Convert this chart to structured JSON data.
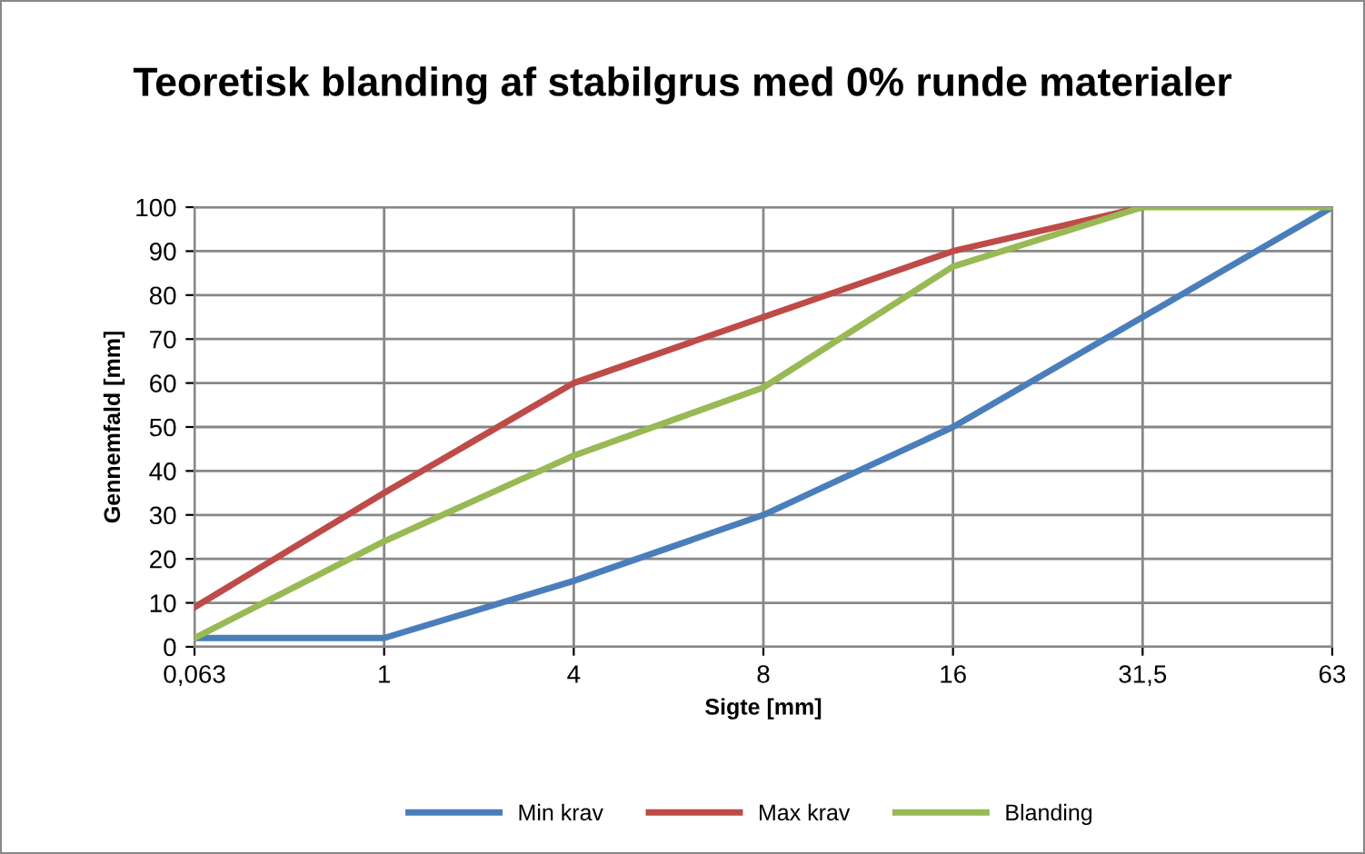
{
  "chart_data": {
    "type": "line",
    "title": "Teoretisk blanding af stabilgrus med 0% runde materialer",
    "xlabel": "Sigte [mm]",
    "ylabel": "Gennemfald [mm]",
    "categories": [
      "0,063",
      "1",
      "4",
      "8",
      "16",
      "31,5",
      "63"
    ],
    "series": [
      {
        "name": "Min krav",
        "color": "#4a7ebb",
        "values": [
          2,
          2,
          15,
          30,
          50,
          75,
          100
        ]
      },
      {
        "name": "Max krav",
        "color": "#be4b48",
        "values": [
          9,
          35,
          60,
          75,
          90,
          100,
          null
        ]
      },
      {
        "name": "Blanding",
        "color": "#98b954",
        "values": [
          2,
          24,
          43.5,
          59,
          86.5,
          100,
          100
        ]
      }
    ],
    "ylim": [
      0,
      100
    ],
    "yticks": [
      0,
      10,
      20,
      30,
      40,
      50,
      60,
      70,
      80,
      90,
      100
    ],
    "grid": true,
    "legend": "bottom",
    "marker": "none",
    "line_style": "solid"
  }
}
